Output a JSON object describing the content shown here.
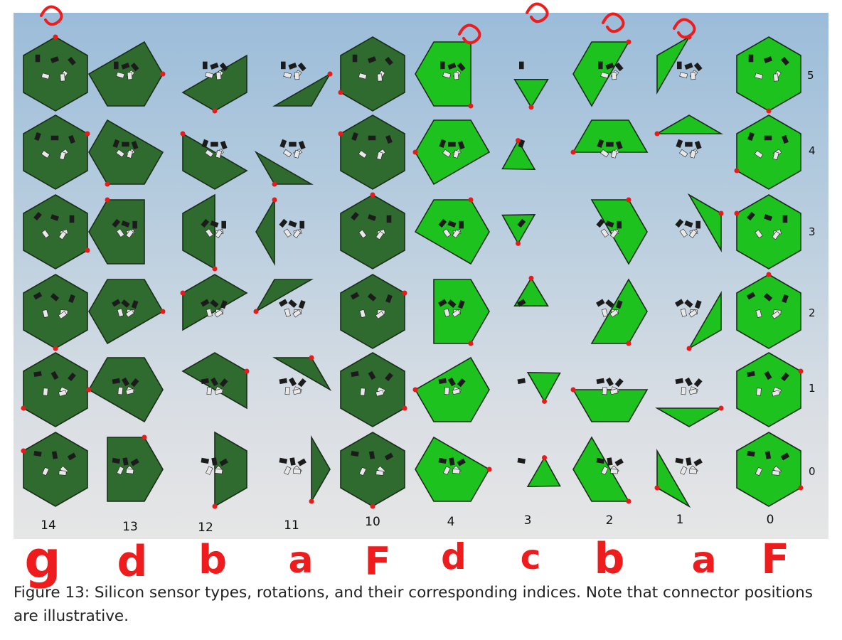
{
  "figure": {
    "caption": "Figure 13: Silicon sensor types, rotations, and their corresponding indices. Note that connector positions are illustrative."
  },
  "column_labels": [
    "14",
    "13",
    "12",
    "11",
    "10",
    "4",
    "3",
    "2",
    "1",
    "0"
  ],
  "row_labels": [
    "5",
    "4",
    "3",
    "2",
    "1",
    "0"
  ],
  "handwritten_letters": [
    "g",
    "d",
    "b",
    "a",
    "F",
    "d",
    "c",
    "b",
    "a",
    "F"
  ],
  "colors": {
    "background_top": "#9bbcd9",
    "background_bottom": "#e6e6e6",
    "dark_sensor_fill": "#2f6b2f",
    "bright_sensor_fill": "#1ec21e",
    "sensor_outline": "#1a2e1a",
    "connector": "#e81a1a",
    "annotation": "#ee1c1c"
  },
  "sensor_types": {
    "columns": [
      "full",
      "five-sided",
      "trapezoid",
      "triangle-large",
      "full",
      "five-sided",
      "triangle-small",
      "trapezoid",
      "triangle-large",
      "full"
    ],
    "shade": [
      "dark",
      "dark",
      "dark",
      "dark",
      "dark",
      "bright",
      "bright",
      "bright",
      "bright",
      "bright"
    ]
  }
}
